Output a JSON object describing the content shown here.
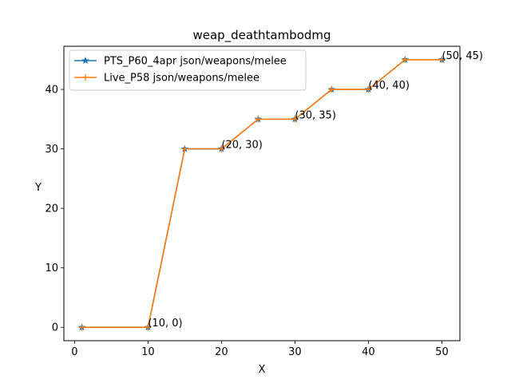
{
  "chart_data": {
    "type": "line",
    "title": "weap_deathtambodmg",
    "xlabel": "X",
    "ylabel": "Y",
    "xlim": [
      -1.45,
      52.45
    ],
    "ylim": [
      -2.25,
      47.25
    ],
    "xticks": [
      0,
      10,
      20,
      30,
      40,
      50
    ],
    "yticks": [
      0,
      10,
      20,
      30,
      40
    ],
    "grid": false,
    "legend_position": "upper-left",
    "series": [
      {
        "name": "PTS_P60_4apr json/weapons/melee",
        "color": "#1f77b4",
        "marker": "star",
        "x": [
          1,
          10,
          15,
          20,
          25,
          30,
          35,
          40,
          45,
          50
        ],
        "y": [
          0,
          0,
          30,
          30,
          35,
          35,
          40,
          40,
          45,
          45
        ]
      },
      {
        "name": "Live_P58 json/weapons/melee",
        "color": "#ff7f0e",
        "marker": "plus",
        "x": [
          1,
          10,
          15,
          20,
          25,
          30,
          35,
          40,
          45,
          50
        ],
        "y": [
          0,
          0,
          30,
          30,
          35,
          35,
          40,
          40,
          45,
          45
        ]
      }
    ],
    "annotations": [
      {
        "text": "(10, 0)",
        "x": 10,
        "y": 0
      },
      {
        "text": "(20, 30)",
        "x": 20,
        "y": 30
      },
      {
        "text": "(30, 35)",
        "x": 30,
        "y": 35
      },
      {
        "text": "(40, 40)",
        "x": 40,
        "y": 40
      },
      {
        "text": "(50, 45)",
        "x": 50,
        "y": 45
      }
    ]
  }
}
